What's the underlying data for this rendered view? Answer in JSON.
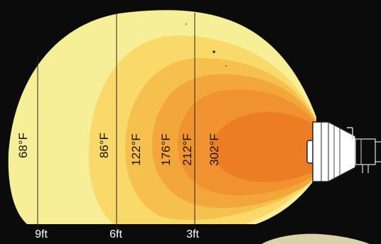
{
  "temperature_labels": [
    "68°F",
    "86°F",
    "122°F",
    "176°F",
    "212°F",
    "302°F"
  ],
  "distance_labels": [
    "9ft",
    "6ft",
    "3ft"
  ],
  "colors": {
    "background": "#0b0b0b",
    "zone_68": "#f7ee98",
    "zone_86": "#f8d96a",
    "zone_122": "#f6c04e",
    "zone_176": "#f3a73a",
    "zone_212": "#f0922f",
    "zone_302": "#ec7d25",
    "lamp_body": "#ffffff"
  }
}
